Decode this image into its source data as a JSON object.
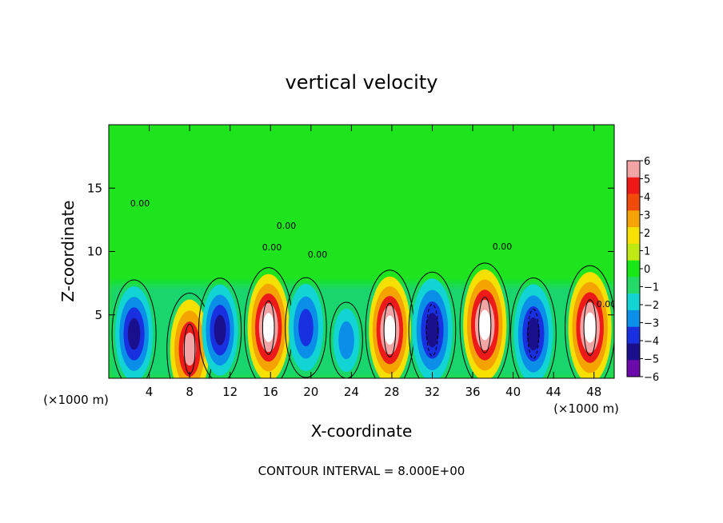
{
  "chart_data": {
    "type": "heatmap",
    "title": "vertical velocity",
    "xlabel": "X-coordinate",
    "ylabel": "Z-coordinate",
    "x_unit_left": "(×1000 m)",
    "x_unit_right": "(×1000 m)",
    "xlim": [
      0,
      50
    ],
    "ylim": [
      0,
      20
    ],
    "x_ticks": [
      4,
      8,
      12,
      16,
      20,
      24,
      28,
      32,
      36,
      40,
      44,
      48
    ],
    "y_ticks": [
      5,
      10,
      15
    ],
    "colorbar": {
      "ticks": [
        6,
        5,
        4,
        3,
        2,
        1,
        0,
        -1,
        -2,
        -3,
        -4,
        -5,
        -6
      ],
      "range": [
        -6,
        6
      ],
      "colors": [
        "#f2a3a3",
        "#ee1a1a",
        "#f24a0a",
        "#f5a300",
        "#f5e000",
        "#bfe814",
        "#18e818",
        "#24d968",
        "#12d4d4",
        "#0a8ee8",
        "#1830e0",
        "#1a108e",
        "#6a0aa8"
      ]
    },
    "contour_labels": [
      "0.00",
      "0.00",
      "0.00",
      "0.00",
      "0.00",
      "0.00"
    ],
    "cells": [
      {
        "x": 2.5,
        "z": 3.5,
        "sign": -1,
        "strength": 7.5
      },
      {
        "x": 8.0,
        "z": 2.3,
        "sign": 1,
        "strength": 8.0
      },
      {
        "x": 11.0,
        "z": 3.8,
        "sign": -1,
        "strength": 7.0
      },
      {
        "x": 15.8,
        "z": 4.0,
        "sign": 1,
        "strength": 9.0
      },
      {
        "x": 19.5,
        "z": 4.0,
        "sign": -1,
        "strength": 6.5
      },
      {
        "x": 23.5,
        "z": 3.0,
        "sign": -1,
        "strength": 3.5
      },
      {
        "x": 27.8,
        "z": 3.8,
        "sign": 1,
        "strength": 9.0
      },
      {
        "x": 32.0,
        "z": 3.8,
        "sign": -1,
        "strength": 8.5
      },
      {
        "x": 37.2,
        "z": 4.2,
        "sign": 1,
        "strength": 9.5
      },
      {
        "x": 42.0,
        "z": 3.5,
        "sign": -1,
        "strength": 8.0
      },
      {
        "x": 47.6,
        "z": 4.0,
        "sign": 1,
        "strength": 9.5
      }
    ],
    "grid": false
  },
  "footer": "CONTOUR INTERVAL = 8.000E+00"
}
